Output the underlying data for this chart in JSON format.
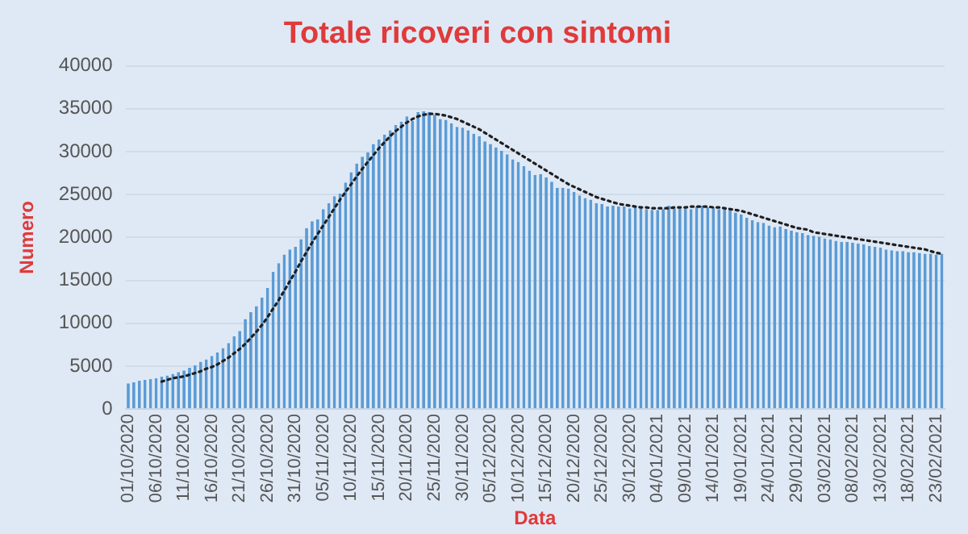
{
  "chart_data": {
    "type": "bar",
    "title": "Totale ricoveri con sintomi",
    "xlabel": "Data",
    "ylabel": "Numero",
    "categories": [
      "01/10/2020",
      null,
      null,
      null,
      null,
      "06/10/2020",
      null,
      null,
      null,
      null,
      "11/10/2020",
      null,
      null,
      null,
      null,
      "16/10/2020",
      null,
      null,
      null,
      null,
      "21/10/2020",
      null,
      null,
      null,
      null,
      "26/10/2020",
      null,
      null,
      null,
      null,
      "31/10/2020",
      null,
      null,
      null,
      null,
      "05/11/2020",
      null,
      null,
      null,
      null,
      "10/11/2020",
      null,
      null,
      null,
      null,
      "15/11/2020",
      null,
      null,
      null,
      null,
      "20/11/2020",
      null,
      null,
      null,
      null,
      "25/11/2020",
      null,
      null,
      null,
      null,
      "30/11/2020",
      null,
      null,
      null,
      null,
      "05/12/2020",
      null,
      null,
      null,
      null,
      "10/12/2020",
      null,
      null,
      null,
      null,
      "15/12/2020",
      null,
      null,
      null,
      null,
      "20/12/2020",
      null,
      null,
      null,
      null,
      "25/12/2020",
      null,
      null,
      null,
      null,
      "30/12/2020",
      null,
      null,
      null,
      null,
      "04/01/2021",
      null,
      null,
      null,
      null,
      "09/01/2021",
      null,
      null,
      null,
      null,
      "14/01/2021",
      null,
      null,
      null,
      null,
      "19/01/2021",
      null,
      null,
      null,
      null,
      "24/01/2021",
      null,
      null,
      null,
      null,
      "29/01/2021",
      null,
      null,
      null,
      null,
      "03/02/2021",
      null,
      null,
      null,
      null,
      "08/02/2021",
      null,
      null,
      null,
      null,
      "13/02/2021",
      null,
      null,
      null,
      null,
      "18/02/2021",
      null,
      null,
      null,
      null,
      "23/02/2021",
      null
    ],
    "series": [
      {
        "color": "#5b9bd5",
        "values": [
          3000,
          3100,
          3300,
          3400,
          3500,
          3600,
          3800,
          3900,
          4100,
          4300,
          4500,
          4800,
          5100,
          5500,
          5800,
          6200,
          6600,
          7100,
          7700,
          8500,
          9100,
          10500,
          11300,
          12000,
          13000,
          14100,
          16000,
          17000,
          18000,
          18600,
          18900,
          19800,
          21100,
          21900,
          22100,
          23300,
          24000,
          24800,
          25100,
          26400,
          27600,
          28600,
          29400,
          29900,
          30900,
          31400,
          32000,
          32500,
          33100,
          33500,
          34100,
          33600,
          34600,
          34700,
          34600,
          34300,
          33800,
          33700,
          33300,
          32900,
          32800,
          32500,
          32100,
          31800,
          31200,
          30900,
          30500,
          30100,
          29700,
          29100,
          28800,
          28300,
          27800,
          27300,
          27400,
          27000,
          26500,
          25800,
          25800,
          25700,
          25300,
          24900,
          24600,
          24400,
          24000,
          23900,
          23600,
          23700,
          23600,
          23600,
          23400,
          23600,
          23400,
          23300,
          23200,
          23200,
          23300,
          23700,
          23400,
          23400,
          23400,
          23300,
          23600,
          23700,
          23500,
          23500,
          23300,
          23300,
          23200,
          22900,
          22700,
          22300,
          22000,
          21800,
          21700,
          21400,
          21200,
          21300,
          21000,
          20800,
          20600,
          20500,
          20300,
          20200,
          20100,
          19900,
          19800,
          19600,
          19500,
          19500,
          19400,
          19300,
          19200,
          19000,
          18900,
          18800,
          18600,
          18500,
          18400,
          18400,
          18300,
          18300,
          18200,
          18100,
          18100,
          18000,
          18100
        ]
      },
      {
        "type": "line",
        "color": "#1f1f1f",
        "line_style": "dotted",
        "marker": "none",
        "values": [
          null,
          null,
          null,
          null,
          null,
          null,
          3200,
          3400,
          3600,
          3700,
          3800,
          4000,
          4200,
          4400,
          4700,
          4900,
          5200,
          5600,
          6000,
          6500,
          7000,
          7600,
          8300,
          9000,
          9800,
          10700,
          11700,
          12700,
          13800,
          14900,
          16000,
          17200,
          18300,
          19400,
          20400,
          21400,
          22400,
          23400,
          24400,
          25300,
          26200,
          27100,
          28000,
          28800,
          29600,
          30400,
          31100,
          31800,
          32400,
          32900,
          33400,
          33800,
          34100,
          34300,
          34400,
          34400,
          34300,
          34200,
          34000,
          33800,
          33500,
          33200,
          32900,
          32600,
          32200,
          31800,
          31400,
          31000,
          30600,
          30200,
          29800,
          29400,
          29000,
          28600,
          28200,
          27800,
          27400,
          27000,
          26600,
          26200,
          25900,
          25600,
          25300,
          25000,
          24700,
          24500,
          24300,
          24100,
          23900,
          23800,
          23700,
          23600,
          23500,
          23500,
          23400,
          23400,
          23400,
          23400,
          23500,
          23500,
          23500,
          23600,
          23600,
          23600,
          23600,
          23500,
          23500,
          23400,
          23300,
          23200,
          23100,
          22900,
          22700,
          22500,
          22300,
          22100,
          21900,
          21700,
          21500,
          21300,
          21100,
          21000,
          20900,
          20600,
          20500,
          20400,
          20300,
          20200,
          20100,
          20000,
          19900,
          19800,
          19700,
          19600,
          19500,
          19400,
          19300,
          19200,
          19100,
          19000,
          18900,
          18800,
          18700,
          18600,
          18400,
          18200,
          18100
        ]
      }
    ],
    "ylim": [
      0,
      40000
    ],
    "yticks": [
      0,
      5000,
      10000,
      15000,
      20000,
      25000,
      30000,
      35000,
      40000
    ],
    "grid": "y",
    "legend": false
  }
}
